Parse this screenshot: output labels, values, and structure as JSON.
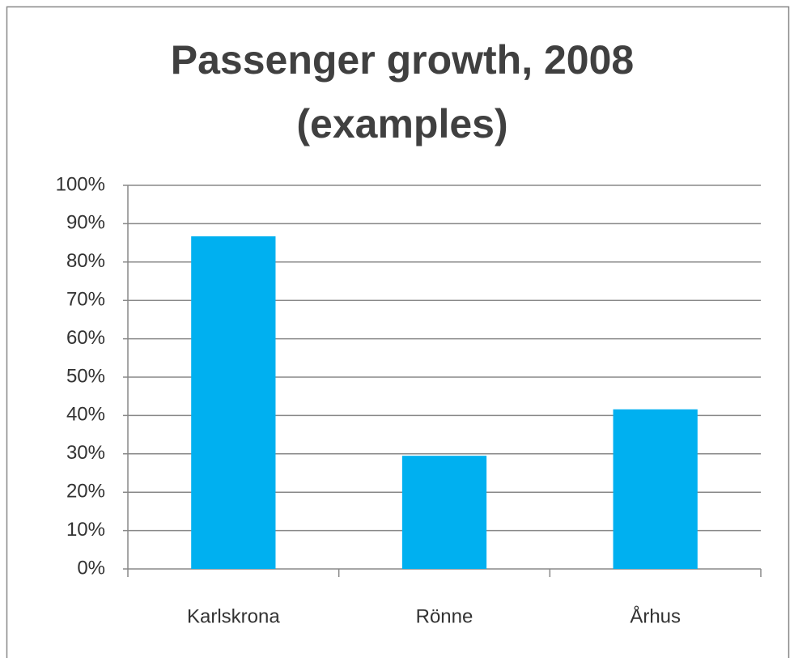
{
  "chart_data": {
    "type": "bar",
    "title": [
      "Passenger growth, 2008",
      "(examples)"
    ],
    "categories": [
      "Karlskrona",
      "Rönne",
      "Århus"
    ],
    "values": [
      86.7,
      29.5,
      41.6
    ],
    "color": "#00b0f0",
    "ylim": [
      0,
      100
    ],
    "yticks": [
      {
        "value": 0,
        "label": "0%"
      },
      {
        "value": 10,
        "label": "10%"
      },
      {
        "value": 20,
        "label": "20%"
      },
      {
        "value": 30,
        "label": "30%"
      },
      {
        "value": 40,
        "label": "40%"
      },
      {
        "value": 50,
        "label": "50%"
      },
      {
        "value": 60,
        "label": "60%"
      },
      {
        "value": 70,
        "label": "70%"
      },
      {
        "value": 80,
        "label": "80%"
      },
      {
        "value": 90,
        "label": "90%"
      },
      {
        "value": 100,
        "label": "100%"
      }
    ],
    "grid": true
  }
}
